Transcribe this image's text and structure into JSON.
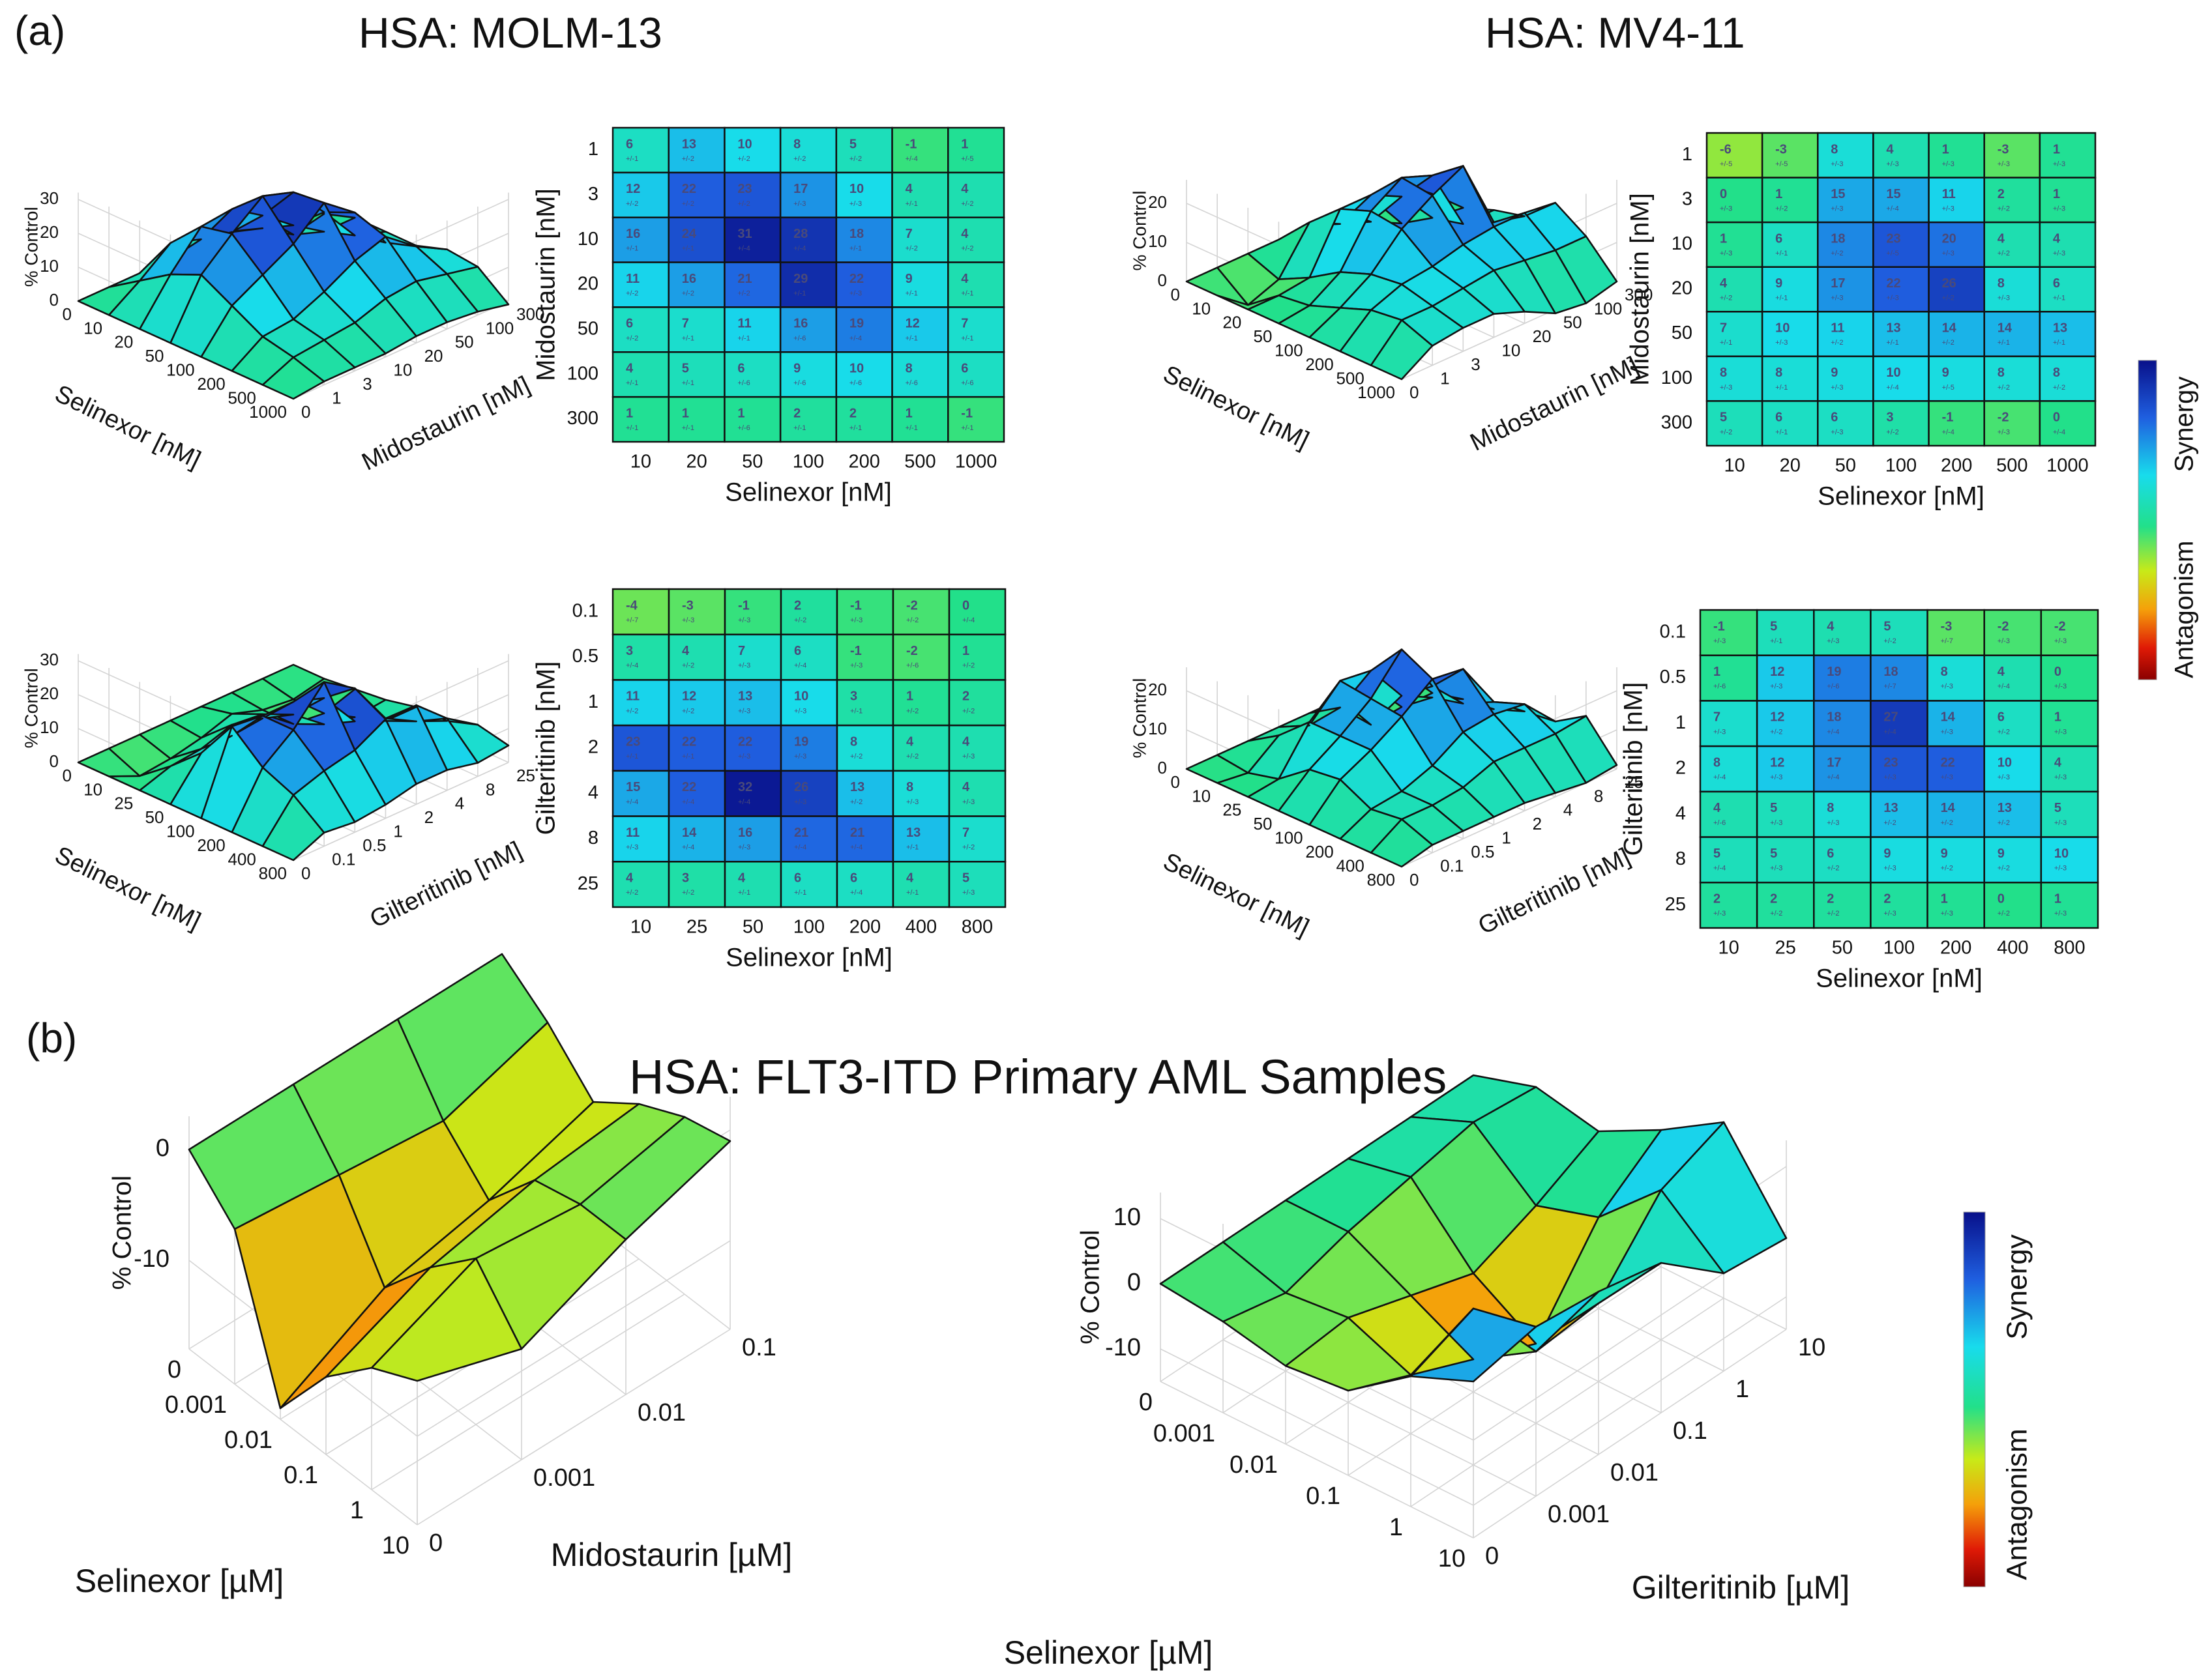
{
  "panel_a_label": "(a)",
  "panel_b_label": "(b)",
  "panel_a_titles": [
    "HSA: MOLM-13",
    "HSA: MV4-11"
  ],
  "panel_b_title": "HSA: FLT3-ITD Primary AML Samples",
  "colorbar": {
    "top_label": "Synergy",
    "bottom_label": "Antagonism",
    "stops": [
      "#08108a",
      "#1f5fe0",
      "#18dcec",
      "#22e08a",
      "#c8ea18",
      "#f5a00a",
      "#e01a06",
      "#8a0000"
    ]
  },
  "chart_data": [
    {
      "id": "surf-molm13-mido",
      "type": "heatmap",
      "render": "surface3d",
      "zlabel": "% Control",
      "zticks": [
        "0",
        "10",
        "20",
        "30"
      ],
      "zmax": 32,
      "xlabel": "Selinexor [nM]",
      "xticks": [
        "0",
        "10",
        "20",
        "50",
        "100",
        "200",
        "500",
        "1000"
      ],
      "ylabel": "Midostaurin [nM]",
      "yticks": [
        "0",
        "1",
        "3",
        "10",
        "20",
        "50",
        "100",
        "300"
      ],
      "z": [
        [
          0,
          0,
          0,
          0,
          0,
          0,
          0,
          0
        ],
        [
          0,
          6,
          13,
          10,
          8,
          5,
          -1,
          1
        ],
        [
          0,
          12,
          22,
          23,
          17,
          10,
          4,
          4
        ],
        [
          0,
          16,
          24,
          31,
          28,
          18,
          7,
          4
        ],
        [
          0,
          11,
          16,
          21,
          29,
          22,
          9,
          4
        ],
        [
          0,
          6,
          7,
          11,
          16,
          19,
          12,
          7
        ],
        [
          0,
          4,
          5,
          6,
          9,
          10,
          8,
          6
        ],
        [
          0,
          1,
          1,
          1,
          2,
          2,
          1,
          -1
        ]
      ]
    },
    {
      "id": "heat-molm13-mido",
      "type": "heatmap",
      "ylabel": "Midostaurin [nM]",
      "xlabel": "Selinexor [nM]",
      "x": [
        "10",
        "20",
        "50",
        "100",
        "200",
        "500",
        "1000"
      ],
      "y": [
        "1",
        "3",
        "10",
        "20",
        "50",
        "100",
        "300"
      ],
      "values": [
        [
          6,
          13,
          10,
          8,
          5,
          -1,
          1
        ],
        [
          12,
          22,
          23,
          17,
          10,
          4,
          4
        ],
        [
          16,
          24,
          31,
          28,
          18,
          7,
          4
        ],
        [
          11,
          16,
          21,
          29,
          22,
          9,
          4
        ],
        [
          6,
          7,
          11,
          16,
          19,
          12,
          7
        ],
        [
          4,
          5,
          6,
          9,
          10,
          8,
          6
        ],
        [
          1,
          1,
          1,
          2,
          2,
          1,
          -1
        ]
      ],
      "errors": [
        [
          "+/-1",
          "+/-2",
          "+/-2",
          "+/-2",
          "+/-2",
          "+/-4",
          "+/-5"
        ],
        [
          "+/-2",
          "+/-2",
          "+/-2",
          "+/-3",
          "+/-3",
          "+/-1",
          "+/-2"
        ],
        [
          "+/-1",
          "+/-1",
          "+/-4",
          "+/-4",
          "+/-1",
          "+/-2",
          "+/-2"
        ],
        [
          "+/-2",
          "+/-2",
          "+/-2",
          "+/-1",
          "+/-3",
          "+/-1",
          "+/-1"
        ],
        [
          "+/-2",
          "+/-1",
          "+/-1",
          "+/-6",
          "+/-4",
          "+/-1",
          "+/-1"
        ],
        [
          "+/-1",
          "+/-1",
          "+/-6",
          "+/-6",
          "+/-6",
          "+/-6",
          "+/-6"
        ],
        [
          "+/-1",
          "+/-1",
          "+/-6",
          "+/-1",
          "+/-1",
          "+/-1",
          "+/-1"
        ]
      ]
    },
    {
      "id": "surf-mv411-mido",
      "type": "heatmap",
      "render": "surface3d",
      "zlabel": "% Control",
      "zticks": [
        "0",
        "10",
        "20"
      ],
      "zmax": 26,
      "xlabel": "Selinexor [nM]",
      "xticks": [
        "0",
        "10",
        "20",
        "50",
        "100",
        "200",
        "500",
        "1000"
      ],
      "ylabel": "Midostaurin [nM]",
      "yticks": [
        "0",
        "1",
        "3",
        "10",
        "20",
        "50",
        "100",
        "300"
      ],
      "z": [
        [
          0,
          0,
          0,
          0,
          0,
          0,
          0,
          0
        ],
        [
          0,
          -6,
          -3,
          8,
          4,
          1,
          -3,
          1
        ],
        [
          0,
          0,
          1,
          15,
          15,
          11,
          2,
          1
        ],
        [
          0,
          1,
          6,
          18,
          23,
          20,
          4,
          4
        ],
        [
          0,
          4,
          9,
          17,
          22,
          26,
          8,
          6
        ],
        [
          0,
          7,
          10,
          11,
          13,
          14,
          14,
          13
        ],
        [
          0,
          8,
          8,
          9,
          10,
          9,
          8,
          8
        ],
        [
          0,
          5,
          6,
          6,
          3,
          -1,
          -2,
          0
        ]
      ]
    },
    {
      "id": "heat-mv411-mido",
      "type": "heatmap",
      "ylabel": "Midostaurin [nM]",
      "xlabel": "Selinexor [nM]",
      "x": [
        "10",
        "20",
        "50",
        "100",
        "200",
        "500",
        "1000"
      ],
      "y": [
        "1",
        "3",
        "10",
        "20",
        "50",
        "100",
        "300"
      ],
      "values": [
        [
          -6,
          -3,
          8,
          4,
          1,
          -3,
          1
        ],
        [
          0,
          1,
          15,
          15,
          11,
          2,
          1
        ],
        [
          1,
          6,
          18,
          23,
          20,
          4,
          4
        ],
        [
          4,
          9,
          17,
          22,
          26,
          8,
          6
        ],
        [
          7,
          10,
          11,
          13,
          14,
          14,
          13
        ],
        [
          8,
          8,
          9,
          10,
          9,
          8,
          8
        ],
        [
          5,
          6,
          6,
          3,
          -1,
          -2,
          0
        ]
      ],
      "errors": [
        [
          "+/-5",
          "+/-5",
          "+/-3",
          "+/-3",
          "+/-3",
          "+/-3",
          "+/-3"
        ],
        [
          "+/-3",
          "+/-2",
          "+/-3",
          "+/-4",
          "+/-3",
          "+/-2",
          "+/-3"
        ],
        [
          "+/-3",
          "+/-1",
          "+/-2",
          "+/-5",
          "+/-3",
          "+/-2",
          "+/-3"
        ],
        [
          "+/-2",
          "+/-1",
          "+/-3",
          "+/-3",
          "+/-2",
          "+/-3",
          "+/-1"
        ],
        [
          "+/-1",
          "+/-3",
          "+/-2",
          "+/-1",
          "+/-2",
          "+/-1",
          "+/-1"
        ],
        [
          "+/-3",
          "+/-1",
          "+/-3",
          "+/-4",
          "+/-5",
          "+/-2",
          "+/-2"
        ],
        [
          "+/-2",
          "+/-1",
          "+/-3",
          "+/-2",
          "+/-4",
          "+/-3",
          "+/-4"
        ]
      ]
    },
    {
      "id": "surf-molm13-gilt",
      "type": "heatmap",
      "render": "surface3d",
      "zlabel": "% Control",
      "zticks": [
        "0",
        "10",
        "20",
        "30"
      ],
      "zmax": 32,
      "xlabel": "Selinexor [nM]",
      "xticks": [
        "0",
        "10",
        "25",
        "50",
        "100",
        "200",
        "400",
        "800"
      ],
      "ylabel": "Gilteritinib [nM]",
      "yticks": [
        "0",
        "0.1",
        "0.5",
        "1",
        "2",
        "4",
        "8",
        "25"
      ],
      "z": [
        [
          0,
          0,
          0,
          0,
          0,
          0,
          0,
          0
        ],
        [
          0,
          -4,
          -3,
          -1,
          2,
          -1,
          -2,
          0
        ],
        [
          0,
          3,
          4,
          7,
          6,
          -1,
          -2,
          1
        ],
        [
          0,
          11,
          12,
          13,
          10,
          3,
          1,
          2
        ],
        [
          0,
          23,
          22,
          22,
          19,
          8,
          4,
          4
        ],
        [
          0,
          15,
          22,
          32,
          26,
          13,
          8,
          4
        ],
        [
          0,
          11,
          14,
          16,
          21,
          21,
          13,
          7
        ],
        [
          0,
          4,
          3,
          4,
          6,
          6,
          4,
          5
        ]
      ]
    },
    {
      "id": "heat-molm13-gilt",
      "type": "heatmap",
      "ylabel": "Gilteritinib [nM]",
      "xlabel": "Selinexor [nM]",
      "x": [
        "10",
        "25",
        "50",
        "100",
        "200",
        "400",
        "800"
      ],
      "y": [
        "0.1",
        "0.5",
        "1",
        "2",
        "4",
        "8",
        "25"
      ],
      "values": [
        [
          -4,
          -3,
          -1,
          2,
          -1,
          -2,
          0
        ],
        [
          3,
          4,
          7,
          6,
          -1,
          -2,
          1
        ],
        [
          11,
          12,
          13,
          10,
          3,
          1,
          2
        ],
        [
          23,
          22,
          22,
          19,
          8,
          4,
          4
        ],
        [
          15,
          22,
          32,
          26,
          13,
          8,
          4
        ],
        [
          11,
          14,
          16,
          21,
          21,
          13,
          7
        ],
        [
          4,
          3,
          4,
          6,
          6,
          4,
          5
        ]
      ],
      "errors": [
        [
          "+/-7",
          "+/-3",
          "+/-3",
          "+/-2",
          "+/-3",
          "+/-2",
          "+/-4"
        ],
        [
          "+/-4",
          "+/-2",
          "+/-3",
          "+/-4",
          "+/-3",
          "+/-6",
          "+/-2"
        ],
        [
          "+/-2",
          "+/-2",
          "+/-3",
          "+/-3",
          "+/-1",
          "+/-2",
          "+/-2"
        ],
        [
          "+/-1",
          "+/-1",
          "+/-3",
          "+/-3",
          "+/-2",
          "+/-2",
          "+/-3"
        ],
        [
          "+/-4",
          "+/-4",
          "+/-4",
          "+/-3",
          "+/-2",
          "+/-3",
          "+/-3"
        ],
        [
          "+/-3",
          "+/-4",
          "+/-3",
          "+/-4",
          "+/-4",
          "+/-1",
          "+/-2"
        ],
        [
          "+/-2",
          "+/-2",
          "+/-1",
          "+/-1",
          "+/-4",
          "+/-1",
          "+/-3"
        ]
      ]
    },
    {
      "id": "surf-mv411-gilt",
      "type": "heatmap",
      "render": "surface3d",
      "zlabel": "% Control",
      "zticks": [
        "0",
        "10",
        "20"
      ],
      "zmax": 26,
      "xlabel": "Selinexor [nM]",
      "xticks": [
        "0",
        "10",
        "25",
        "50",
        "100",
        "200",
        "400",
        "800"
      ],
      "ylabel": "Gilteritinib [nM]",
      "yticks": [
        "0",
        "0.1",
        "0.5",
        "1",
        "2",
        "4",
        "8",
        "25"
      ],
      "z": [
        [
          0,
          0,
          0,
          0,
          0,
          0,
          0,
          0
        ],
        [
          0,
          -1,
          5,
          4,
          5,
          -3,
          -2,
          -2
        ],
        [
          0,
          1,
          12,
          19,
          18,
          8,
          4,
          0
        ],
        [
          0,
          7,
          12,
          18,
          27,
          14,
          6,
          1
        ],
        [
          0,
          8,
          12,
          17,
          23,
          22,
          10,
          4
        ],
        [
          0,
          4,
          5,
          8,
          13,
          14,
          13,
          5
        ],
        [
          0,
          5,
          5,
          6,
          9,
          9,
          9,
          10
        ],
        [
          0,
          2,
          2,
          2,
          2,
          1,
          0,
          1
        ]
      ]
    },
    {
      "id": "heat-mv411-gilt",
      "type": "heatmap",
      "ylabel": "Gilteritinib [nM]",
      "xlabel": "Selinexor [nM]",
      "x": [
        "10",
        "25",
        "50",
        "100",
        "200",
        "400",
        "800"
      ],
      "y": [
        "0.1",
        "0.5",
        "1",
        "2",
        "4",
        "8",
        "25"
      ],
      "values": [
        [
          -1,
          5,
          4,
          5,
          -3,
          -2,
          -2
        ],
        [
          1,
          12,
          19,
          18,
          8,
          4,
          0
        ],
        [
          7,
          12,
          18,
          27,
          14,
          6,
          1
        ],
        [
          8,
          12,
          17,
          23,
          22,
          10,
          4
        ],
        [
          4,
          5,
          8,
          13,
          14,
          13,
          5
        ],
        [
          5,
          5,
          6,
          9,
          9,
          9,
          10
        ],
        [
          2,
          2,
          2,
          2,
          1,
          0,
          1
        ]
      ],
      "errors": [
        [
          "+/-3",
          "+/-1",
          "+/-3",
          "+/-2",
          "+/-7",
          "+/-3",
          "+/-3"
        ],
        [
          "+/-6",
          "+/-3",
          "+/-6",
          "+/-7",
          "+/-3",
          "+/-4",
          "+/-3"
        ],
        [
          "+/-3",
          "+/-2",
          "+/-4",
          "+/-4",
          "+/-3",
          "+/-2",
          "+/-3"
        ],
        [
          "+/-4",
          "+/-3",
          "+/-4",
          "+/-3",
          "+/-3",
          "+/-3",
          "+/-3"
        ],
        [
          "+/-6",
          "+/-3",
          "+/-3",
          "+/-2",
          "+/-2",
          "+/-2",
          "+/-3"
        ],
        [
          "+/-4",
          "+/-3",
          "+/-2",
          "+/-3",
          "+/-2",
          "+/-2",
          "+/-3"
        ],
        [
          "+/-3",
          "+/-2",
          "+/-2",
          "+/-3",
          "+/-3",
          "+/-2",
          "+/-3"
        ]
      ]
    },
    {
      "id": "surf-primary-mido",
      "type": "heatmap",
      "render": "surface3d",
      "zlabel": "% Control",
      "zticks": [
        "0",
        "-10"
      ],
      "zmin": -18,
      "zmax": 3,
      "xlabel": "Selinexor [µM]",
      "xticks": [
        "0",
        "0.001",
        "0.01",
        "0.1",
        "1",
        "10"
      ],
      "ylabel": "Midostaurin [µM]",
      "yticks": [
        "0",
        "0.001",
        "0.01",
        "0.1"
      ],
      "z": [
        [
          0,
          0,
          0,
          0
        ],
        [
          -4,
          -5,
          -6,
          -3
        ],
        [
          -17,
          -12,
          -10,
          -7
        ],
        [
          -11,
          -7,
          -5,
          -4
        ],
        [
          -7,
          -3,
          -4,
          -2
        ],
        [
          -5,
          -8,
          -4,
          -1
        ]
      ]
    },
    {
      "id": "surf-primary-gilt",
      "type": "heatmap",
      "render": "surface3d",
      "zlabel": "% Control",
      "zticks": [
        "10",
        "0",
        "-10"
      ],
      "zmin": -15,
      "zmax": 14,
      "xlabel": "Selinexor [µM]",
      "xticks": [
        "0",
        "0.001",
        "0.01",
        "0.1",
        "1",
        "10"
      ],
      "ylabel": "Gilteritinib [µM]",
      "yticks": [
        "0",
        "0.001",
        "0.01",
        "0.1",
        "1",
        "10"
      ],
      "z": [
        [
          0,
          0,
          0,
          0,
          0,
          0
        ],
        [
          -1,
          -3,
          0,
          2,
          4,
          3
        ],
        [
          -3,
          -2,
          -5,
          -8,
          -4,
          1
        ],
        [
          -2,
          -6,
          -10,
          -14,
          -1,
          6
        ],
        [
          5,
          9,
          -4,
          -3,
          8,
          12
        ],
        [
          9,
          11,
          10,
          8,
          0,
          -1
        ]
      ]
    }
  ]
}
